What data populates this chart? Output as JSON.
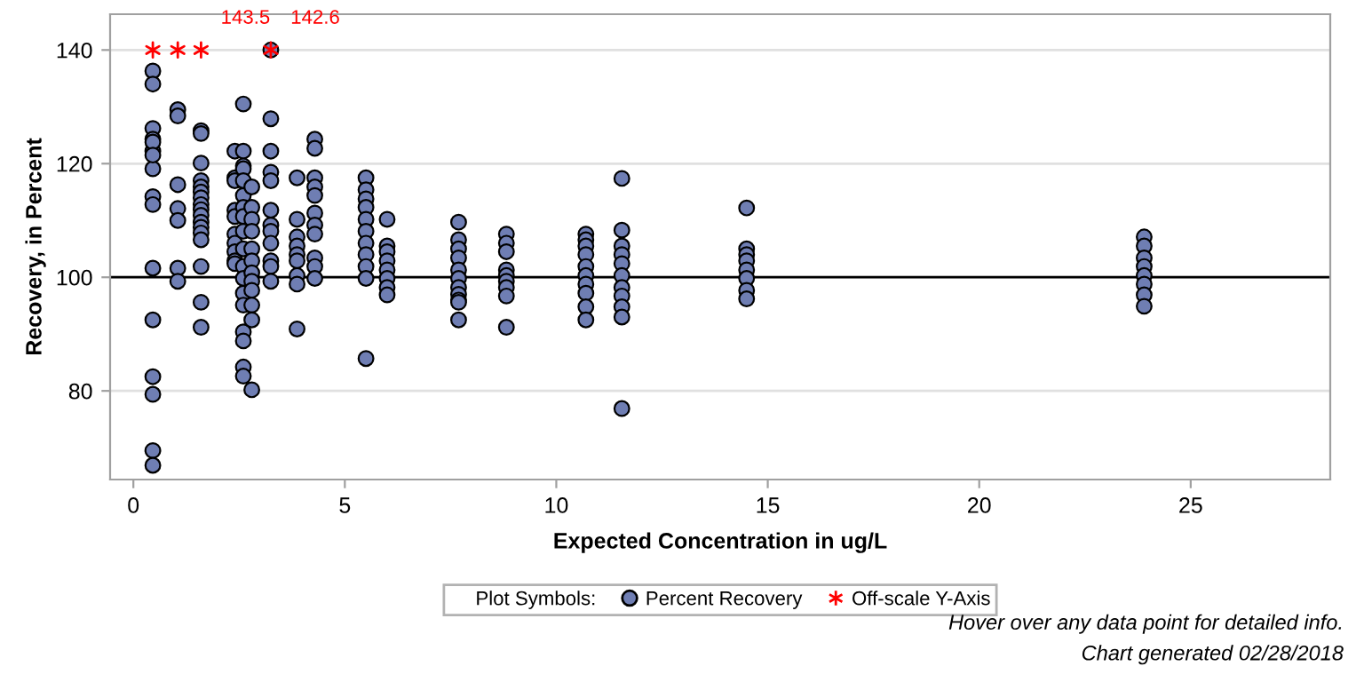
{
  "chart_data": {
    "type": "scatter",
    "xlabel": "Expected Concentration in ug/L",
    "ylabel": "Recovery, in Percent",
    "legend_title": "Plot Symbols:",
    "legend": "bottom",
    "grid": "y",
    "xlim": [
      -0.55,
      28.3
    ],
    "ylim": [
      64.4,
      146.3
    ],
    "xticks": [
      0,
      5,
      10,
      15,
      20,
      25
    ],
    "yticks": [
      80,
      100,
      120,
      140
    ],
    "ref_lines": [
      {
        "axis": "y",
        "value": 100,
        "label": null,
        "color": "#000000"
      }
    ],
    "annotations": [
      "Hover over any data point for detailed info.",
      "Chart generated 02/28/2018",
      {
        "text": "143.5",
        "x": 1.6,
        "y": 140
      },
      {
        "text": "142.6",
        "x": 3.25,
        "y": 140
      }
    ],
    "series": [
      {
        "name": "Percent Recovery",
        "marker": "circle",
        "color": "#6f7eb3",
        "x": [
          0.46,
          0.46,
          0.46,
          0.46,
          0.46,
          0.46,
          0.46,
          0.46,
          0.46,
          0.46,
          0.46,
          0.46,
          0.46,
          0.46,
          0.46,
          0.46,
          1.05,
          1.05,
          1.05,
          1.05,
          1.05,
          1.05,
          1.05,
          1.6,
          1.6,
          1.6,
          1.6,
          1.6,
          1.6,
          1.6,
          1.6,
          1.6,
          1.6,
          1.6,
          1.6,
          1.6,
          1.6,
          1.6,
          1.6,
          1.6,
          2.4,
          2.4,
          2.4,
          2.4,
          2.4,
          2.4,
          2.4,
          2.4,
          2.4,
          2.4,
          2.6,
          2.6,
          2.6,
          2.6,
          2.6,
          2.6,
          2.6,
          2.6,
          2.6,
          2.6,
          2.6,
          2.6,
          2.6,
          2.6,
          2.6,
          2.6,
          2.6,
          2.6,
          2.8,
          2.8,
          2.8,
          2.8,
          2.8,
          2.8,
          2.8,
          2.8,
          2.8,
          2.8,
          2.8,
          2.8,
          3.25,
          3.25,
          3.25,
          3.25,
          3.25,
          3.25,
          3.25,
          3.25,
          3.25,
          3.25,
          3.25,
          3.25,
          3.87,
          3.87,
          3.87,
          3.87,
          3.87,
          3.87,
          3.87,
          3.87,
          3.87,
          4.29,
          4.29,
          4.29,
          4.29,
          4.29,
          4.29,
          4.29,
          4.29,
          4.29,
          4.29,
          4.29,
          5.5,
          5.5,
          5.5,
          5.5,
          5.5,
          5.5,
          5.5,
          5.5,
          5.5,
          5.5,
          5.5,
          6.0,
          6.0,
          6.0,
          6.0,
          6.0,
          6.0,
          6.0,
          6.0,
          7.69,
          7.69,
          7.69,
          7.69,
          7.69,
          7.69,
          7.69,
          7.69,
          7.69,
          7.69,
          7.69,
          8.82,
          8.82,
          8.82,
          8.82,
          8.82,
          8.82,
          8.82,
          8.82,
          8.82,
          10.7,
          10.7,
          10.7,
          10.7,
          10.7,
          10.7,
          10.7,
          10.7,
          10.7,
          10.7,
          11.55,
          11.55,
          11.55,
          11.55,
          11.55,
          11.55,
          11.55,
          11.55,
          11.55,
          11.55,
          11.55,
          14.5,
          14.5,
          14.5,
          14.5,
          14.5,
          14.5,
          14.5,
          14.5,
          23.9,
          23.9,
          23.9,
          23.9,
          23.9,
          23.9,
          23.9,
          23.9
        ],
        "values": [
          136.3,
          134,
          126.2,
          124.3,
          122.2,
          119.1,
          114.2,
          112.8,
          101.6,
          92.5,
          82.5,
          79.4,
          69.5,
          66.9,
          123.8,
          121.5,
          129.5,
          128.4,
          116.3,
          112.1,
          110,
          101.6,
          99.3,
          125.8,
          125.3,
          120.1,
          117,
          115.9,
          115,
          114,
          112.8,
          111.9,
          110.9,
          109.7,
          108.8,
          107.8,
          106.6,
          101.9,
          95.6,
          91.2,
          122.2,
          117.5,
          117,
          111.8,
          110.7,
          107.6,
          106,
          104.5,
          102.9,
          102.4,
          130.5,
          122.2,
          119.6,
          119.1,
          117,
          114.4,
          112.3,
          110.7,
          108.1,
          105,
          101.9,
          99.8,
          97.2,
          95.1,
          90.4,
          88.8,
          84.2,
          82.6,
          115.9,
          112.3,
          110.2,
          108.1,
          105,
          102.9,
          100.8,
          99.3,
          97.7,
          95.1,
          92.5,
          80.2,
          140,
          127.9,
          122.2,
          118.5,
          117,
          111.8,
          109.2,
          108.1,
          106,
          102.9,
          101.9,
          99.3,
          117.5,
          110.2,
          107.1,
          105.5,
          104,
          102.9,
          100.3,
          98.8,
          90.9,
          124.3,
          122.7,
          117.5,
          115.9,
          114.4,
          111.3,
          109.2,
          107.6,
          103.4,
          101.9,
          99.8,
          117.5,
          115.4,
          113.8,
          112.3,
          110.2,
          108.1,
          106,
          104,
          101.9,
          99.8,
          85.7,
          110.2,
          105.5,
          104.5,
          102.9,
          101.3,
          99.8,
          98.2,
          96.9,
          109.7,
          106.6,
          105,
          103.4,
          101.3,
          99.8,
          98.2,
          97,
          96,
          95.6,
          92.5,
          107.6,
          106,
          104.5,
          101.3,
          100.3,
          99.3,
          98.2,
          96.7,
          91.2,
          107.6,
          106.6,
          105.5,
          104,
          101.9,
          100.3,
          98.8,
          97.2,
          94.8,
          92.5,
          117.4,
          108.3,
          105.5,
          104,
          102.4,
          100.3,
          98.2,
          96.7,
          94.8,
          93,
          76.9,
          112.2,
          105,
          104,
          102.9,
          101.3,
          99.8,
          97.7,
          96.2,
          107.1,
          105.5,
          103.4,
          101.9,
          100.3,
          98.8,
          96.9,
          94.9
        ]
      },
      {
        "name": "Off-scale Y-Axis",
        "marker": "cross",
        "color": "#ff0000",
        "x": [
          0.46,
          1.05,
          1.6,
          3.25
        ],
        "values": [
          140,
          140,
          140,
          140
        ]
      }
    ]
  }
}
